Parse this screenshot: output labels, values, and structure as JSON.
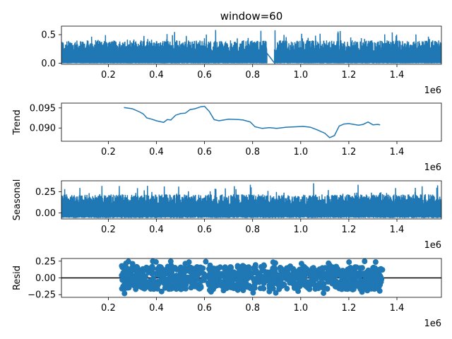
{
  "chart_data": {
    "type": "line",
    "title": "window=60",
    "color": "#1f77b4",
    "x_ticks": [
      "0.2",
      "0.4",
      "0.6",
      "0.8",
      "1.0",
      "1.2",
      "1.4"
    ],
    "x_tick_values": [
      200000,
      400000,
      600000,
      800000,
      1000000,
      1200000,
      1400000
    ],
    "x_offset_label": "1e6",
    "xlim": [
      5000,
      1585000
    ],
    "panels": [
      {
        "name": "observed",
        "ylabel": "",
        "kind": "line",
        "ylim": [
          -0.02,
          0.65
        ],
        "y_ticks": [
          "0.0",
          "0.5"
        ],
        "y_tick_values": [
          0.0,
          0.5
        ],
        "x_range": [
          5000,
          1585000
        ],
        "gap": [
          860000,
          890000
        ]
      },
      {
        "name": "trend",
        "ylabel": "Trend",
        "kind": "line",
        "ylim": [
          0.0867,
          0.0962
        ],
        "y_ticks": [
          "0.090",
          "0.095"
        ],
        "y_tick_values": [
          0.09,
          0.095
        ],
        "x": [
          265000,
          300000,
          330000,
          345000,
          360000,
          380000,
          400000,
          430000,
          445000,
          460000,
          480000,
          500000,
          520000,
          540000,
          560000,
          585000,
          600000,
          620000,
          640000,
          660000,
          700000,
          740000,
          760000,
          790000,
          810000,
          840000,
          870000,
          900000,
          940000,
          980000,
          1010000,
          1040000,
          1070000,
          1100000,
          1120000,
          1140000,
          1160000,
          1180000,
          1200000,
          1240000,
          1260000,
          1280000,
          1300000,
          1320000,
          1330000
        ],
        "values": [
          0.0951,
          0.0948,
          0.094,
          0.0935,
          0.0925,
          0.0922,
          0.0918,
          0.0914,
          0.0921,
          0.092,
          0.0932,
          0.0936,
          0.0937,
          0.0946,
          0.0948,
          0.0953,
          0.0954,
          0.0941,
          0.0921,
          0.0918,
          0.0922,
          0.0921,
          0.092,
          0.0915,
          0.0903,
          0.0899,
          0.0901,
          0.0899,
          0.0902,
          0.0903,
          0.0904,
          0.0902,
          0.0895,
          0.0887,
          0.0876,
          0.0881,
          0.0905,
          0.091,
          0.0911,
          0.0907,
          0.0909,
          0.0915,
          0.0908,
          0.0909,
          0.0908
        ]
      },
      {
        "name": "seasonal",
        "ylabel": "Seasonal",
        "kind": "line",
        "ylim": [
          -0.07,
          0.38
        ],
        "y_ticks": [
          "0.00",
          "0.25"
        ],
        "y_tick_values": [
          0.0,
          0.25
        ],
        "x_range": [
          5000,
          1585000
        ]
      },
      {
        "name": "resid",
        "ylabel": "Resid",
        "kind": "scatter",
        "ylim": [
          -0.29,
          0.29
        ],
        "y_ticks": [
          "−0.25",
          "0.00",
          "0.25"
        ],
        "y_tick_values": [
          -0.25,
          0.0,
          0.25
        ],
        "x_range": [
          255000,
          1340000
        ],
        "zero_line": true
      }
    ]
  }
}
